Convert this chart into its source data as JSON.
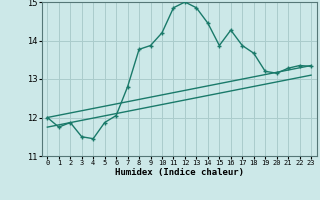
{
  "xlabel": "Humidex (Indice chaleur)",
  "bg_color": "#cce8e8",
  "grid_color": "#aacccc",
  "line_color": "#1a7a6a",
  "xlim": [
    -0.5,
    23.5
  ],
  "ylim": [
    11,
    15
  ],
  "yticks": [
    11,
    12,
    13,
    14,
    15
  ],
  "xticks": [
    0,
    1,
    2,
    3,
    4,
    5,
    6,
    7,
    8,
    9,
    10,
    11,
    12,
    13,
    14,
    15,
    16,
    17,
    18,
    19,
    20,
    21,
    22,
    23
  ],
  "main_x": [
    0,
    1,
    2,
    3,
    4,
    5,
    6,
    7,
    8,
    9,
    10,
    11,
    12,
    13,
    14,
    15,
    16,
    17,
    18,
    19,
    20,
    21,
    22,
    23
  ],
  "main_y": [
    12.0,
    11.75,
    11.87,
    11.5,
    11.45,
    11.87,
    12.05,
    12.8,
    13.77,
    13.87,
    14.2,
    14.85,
    15.0,
    14.85,
    14.45,
    13.87,
    14.27,
    13.87,
    13.67,
    13.2,
    13.15,
    13.28,
    13.35,
    13.33
  ],
  "line1_x": [
    0,
    23
  ],
  "line1_y": [
    12.0,
    13.35
  ],
  "line2_x": [
    0,
    23
  ],
  "line2_y": [
    11.75,
    13.1
  ]
}
